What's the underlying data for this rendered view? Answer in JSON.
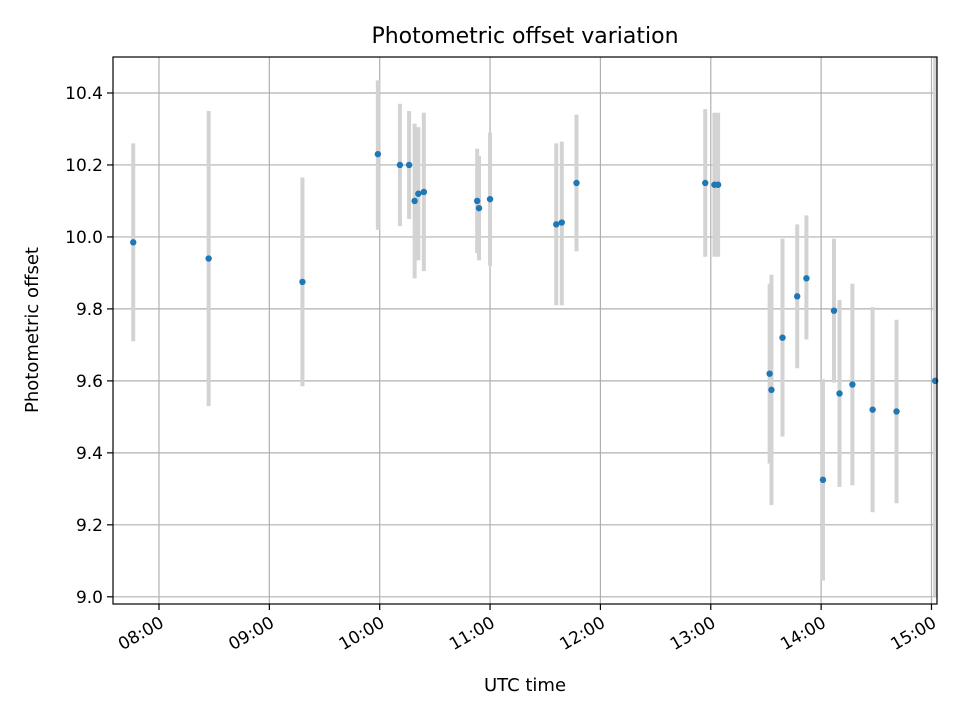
{
  "chart_data": {
    "type": "scatter",
    "title": "Photometric offset variation",
    "xlabel": "UTC time",
    "ylabel": "Photometric offset",
    "xlim": [
      "07:35",
      "15:03"
    ],
    "ylim": [
      8.98,
      10.5
    ],
    "grid": true,
    "x_ticks": [
      "08:00",
      "09:00",
      "10:00",
      "11:00",
      "12:00",
      "13:00",
      "14:00",
      "15:00"
    ],
    "y_ticks": [
      9.0,
      9.2,
      9.4,
      9.6,
      9.8,
      10.0,
      10.2,
      10.4
    ],
    "y_tick_labels": [
      "9.0",
      "9.2",
      "9.4",
      "9.6",
      "9.8",
      "10.0",
      "10.2",
      "10.4"
    ],
    "point_color": "#1f77b4",
    "errorbar_color": "#d3d3d3",
    "points": [
      {
        "time": "07:46",
        "y": 9.985,
        "low": 9.71,
        "high": 10.26
      },
      {
        "time": "08:27",
        "y": 9.94,
        "low": 9.53,
        "high": 10.35
      },
      {
        "time": "09:18",
        "y": 9.875,
        "low": 9.585,
        "high": 10.165
      },
      {
        "time": "09:59",
        "y": 10.23,
        "low": 10.02,
        "high": 10.435
      },
      {
        "time": "10:11",
        "y": 10.2,
        "low": 10.03,
        "high": 10.37
      },
      {
        "time": "10:16",
        "y": 10.2,
        "low": 10.05,
        "high": 10.35
      },
      {
        "time": "10:19",
        "y": 10.1,
        "low": 9.885,
        "high": 10.315
      },
      {
        "time": "10:21",
        "y": 10.12,
        "low": 9.935,
        "high": 10.305
      },
      {
        "time": "10:24",
        "y": 10.125,
        "low": 9.905,
        "high": 10.345
      },
      {
        "time": "10:53",
        "y": 10.1,
        "low": 9.955,
        "high": 10.245
      },
      {
        "time": "10:54",
        "y": 10.08,
        "low": 9.935,
        "high": 10.225
      },
      {
        "time": "11:00",
        "y": 10.105,
        "low": 9.92,
        "high": 10.29
      },
      {
        "time": "11:36",
        "y": 10.035,
        "low": 9.81,
        "high": 10.26
      },
      {
        "time": "11:39",
        "y": 10.04,
        "low": 9.81,
        "high": 10.265
      },
      {
        "time": "11:47",
        "y": 10.15,
        "low": 9.96,
        "high": 10.34
      },
      {
        "time": "12:57",
        "y": 10.15,
        "low": 9.945,
        "high": 10.355
      },
      {
        "time": "13:02",
        "y": 10.145,
        "low": 9.945,
        "high": 10.345
      },
      {
        "time": "13:04",
        "y": 10.145,
        "low": 9.945,
        "high": 10.345
      },
      {
        "time": "13:32",
        "y": 9.62,
        "low": 9.37,
        "high": 9.87
      },
      {
        "time": "13:33",
        "y": 9.575,
        "low": 9.255,
        "high": 9.895
      },
      {
        "time": "13:39",
        "y": 9.72,
        "low": 9.445,
        "high": 9.995
      },
      {
        "time": "13:47",
        "y": 9.835,
        "low": 9.635,
        "high": 10.035
      },
      {
        "time": "13:52",
        "y": 9.885,
        "low": 9.715,
        "high": 10.06
      },
      {
        "time": "14:01",
        "y": 9.325,
        "low": 9.045,
        "high": 9.605
      },
      {
        "time": "14:07",
        "y": 9.795,
        "low": 9.595,
        "high": 9.995
      },
      {
        "time": "14:10",
        "y": 9.565,
        "low": 9.305,
        "high": 9.825
      },
      {
        "time": "14:17",
        "y": 9.59,
        "low": 9.31,
        "high": 9.87
      },
      {
        "time": "14:28",
        "y": 9.52,
        "low": 9.235,
        "high": 9.805
      },
      {
        "time": "14:41",
        "y": 9.515,
        "low": 9.26,
        "high": 9.77
      },
      {
        "time": "15:02",
        "y": 9.6,
        "low": 9.0,
        "high": 10.5
      }
    ]
  }
}
